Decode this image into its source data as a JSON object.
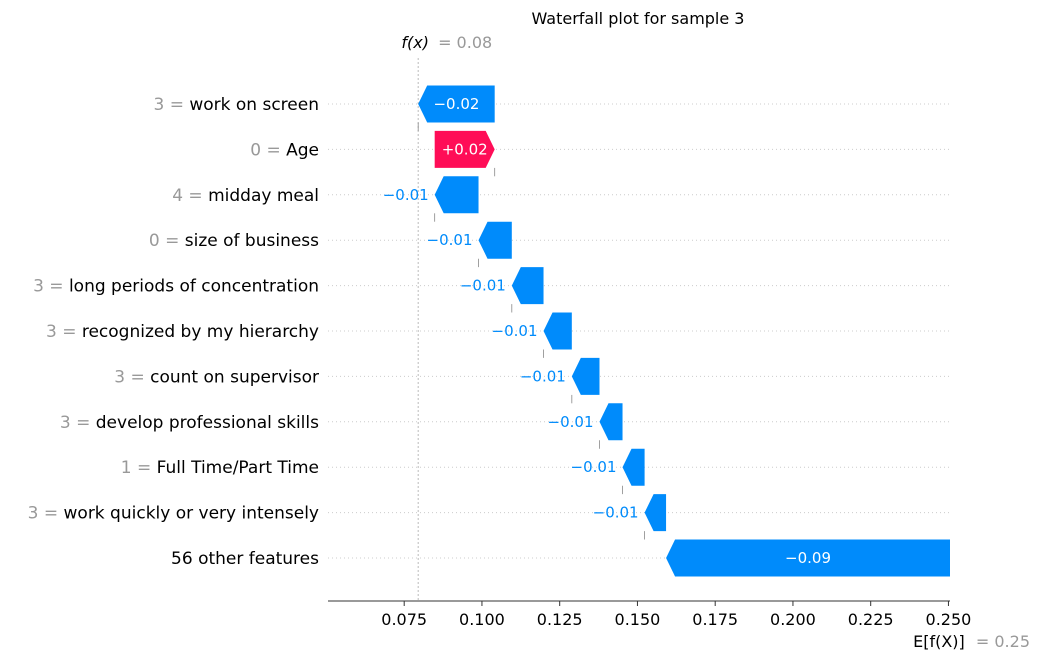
{
  "chart_data": {
    "type": "waterfall",
    "title": "Waterfall plot for sample 3",
    "fx_label": "f(x)",
    "fx_value_label": "= 0.08",
    "fx_value": 0.0795,
    "efx_label": "E[f(X)]",
    "efx_value_label": "= 0.25",
    "efx_value": 0.2505,
    "xlim": [
      0.0505,
      0.2505
    ],
    "x_ticks": [
      0.075,
      0.1,
      0.125,
      0.15,
      0.175,
      0.2,
      0.225,
      0.25
    ],
    "x_tick_labels": [
      "0.075",
      "0.100",
      "0.125",
      "0.150",
      "0.175",
      "0.200",
      "0.225",
      "0.250"
    ],
    "features": [
      {
        "value_label": "3 =",
        "name": "work on screen",
        "start": 0.1041,
        "end": 0.0795,
        "label": "−0.02"
      },
      {
        "value_label": "0 =",
        "name": "Age",
        "start": 0.0848,
        "end": 0.1041,
        "label": "+0.02"
      },
      {
        "value_label": "4 =",
        "name": "midday meal",
        "start": 0.0989,
        "end": 0.0848,
        "label": "−0.01"
      },
      {
        "value_label": "0 =",
        "name": "size of business",
        "start": 0.1096,
        "end": 0.0989,
        "label": "−0.01"
      },
      {
        "value_label": "3 =",
        "name": "long periods of concentration",
        "start": 0.1198,
        "end": 0.1096,
        "label": "−0.01"
      },
      {
        "value_label": "3 =",
        "name": "recognized by my hierarchy",
        "start": 0.1289,
        "end": 0.1198,
        "label": "−0.01"
      },
      {
        "value_label": "3 =",
        "name": "count on supervisor",
        "start": 0.1378,
        "end": 0.1289,
        "label": "−0.01"
      },
      {
        "value_label": "3 =",
        "name": "develop professional skills",
        "start": 0.1452,
        "end": 0.1378,
        "label": "−0.01"
      },
      {
        "value_label": "1 =",
        "name": "Full Time/Part Time",
        "start": 0.1523,
        "end": 0.1452,
        "label": "−0.01"
      },
      {
        "value_label": "3 =",
        "name": "work quickly or very intensely",
        "start": 0.1592,
        "end": 0.1523,
        "label": "−0.01"
      },
      {
        "value_label": "",
        "name": "56 other features",
        "start": 0.2505,
        "end": 0.1592,
        "label": "−0.09"
      }
    ],
    "colors": {
      "positive": "#ff0d57",
      "negative": "#008bfb",
      "value_text": "#999999",
      "axis": "#333333",
      "grid": "#cccccc"
    }
  }
}
